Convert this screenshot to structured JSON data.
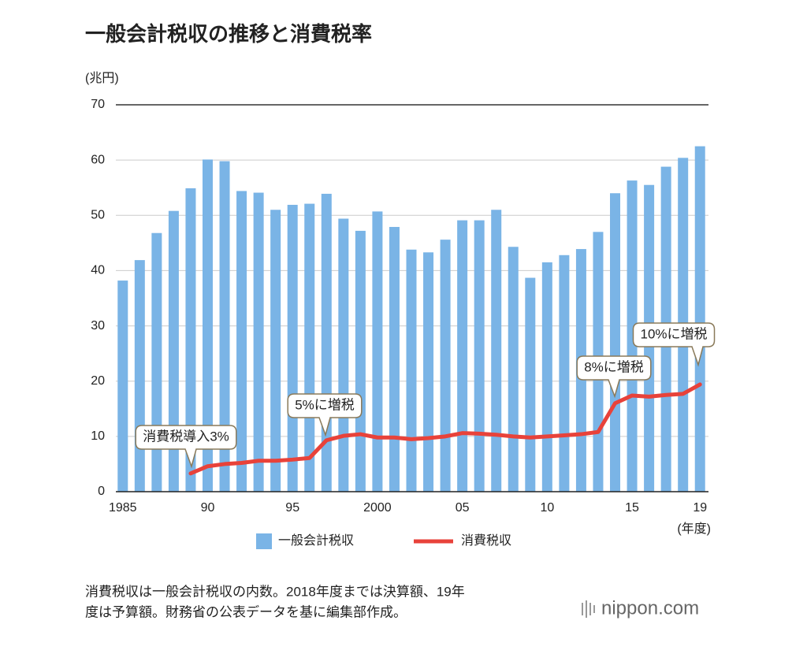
{
  "chart_data": {
    "type": "bar_line",
    "title": "一般会計税収の推移と消費税率",
    "y_axis_label": "(兆円)",
    "x_axis_label": "(年度)",
    "categories": [
      "1985",
      null,
      null,
      null,
      null,
      "90",
      null,
      null,
      null,
      null,
      "95",
      null,
      null,
      null,
      null,
      "2000",
      null,
      null,
      null,
      null,
      "05",
      null,
      null,
      null,
      null,
      "10",
      null,
      null,
      null,
      null,
      "15",
      null,
      null,
      null,
      "19"
    ],
    "series": [
      {
        "name": "一般会計税収",
        "color": "#7ab4e6",
        "kind": "bar",
        "values": [
          38.2,
          41.9,
          46.8,
          50.8,
          54.9,
          60.1,
          59.8,
          54.4,
          54.1,
          51.0,
          51.9,
          52.1,
          53.9,
          49.4,
          47.2,
          50.7,
          47.9,
          43.8,
          43.3,
          45.6,
          49.1,
          49.1,
          51.0,
          44.3,
          38.7,
          41.5,
          42.8,
          43.9,
          47.0,
          54.0,
          56.3,
          55.5,
          58.8,
          60.4,
          62.5
        ]
      },
      {
        "name": "消費税収",
        "color": "#e8423a",
        "kind": "line",
        "values": [
          null,
          null,
          null,
          null,
          3.3,
          4.6,
          5.0,
          5.2,
          5.6,
          5.6,
          5.8,
          6.1,
          9.3,
          10.1,
          10.4,
          9.8,
          9.8,
          9.5,
          9.7,
          10.0,
          10.6,
          10.5,
          10.3,
          10.0,
          9.8,
          10.0,
          10.2,
          10.4,
          10.8,
          16.0,
          17.4,
          17.2,
          17.5,
          17.7,
          19.4
        ]
      }
    ],
    "ylim": [
      0,
      70
    ],
    "yticks": [
      0,
      10,
      20,
      30,
      40,
      50,
      60,
      70
    ],
    "grid": true,
    "annotations": [
      "消費税導入3%",
      "5%に増税",
      "8%に増税",
      "10%に増税"
    ],
    "footnote": [
      "消費税収は一般会計税収の内数。2018年度までは決算額、19年",
      "度は予算額。財務省の公表データを基に編集部作成。"
    ],
    "source": "nippon.com"
  }
}
